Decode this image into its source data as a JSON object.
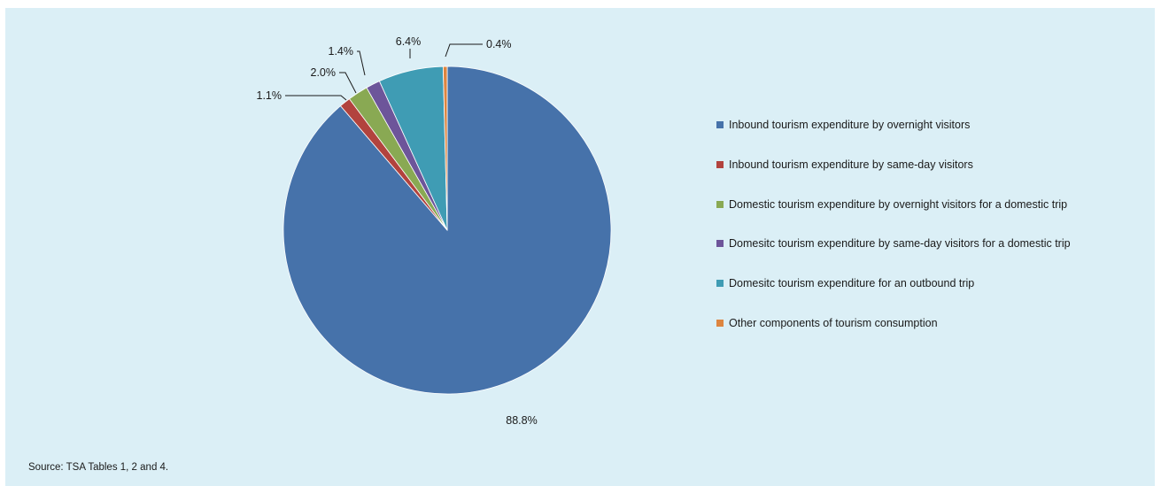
{
  "chart_data": {
    "type": "pie",
    "title": "",
    "slices": [
      {
        "label": "Inbound tourism expenditure by overnight visitors",
        "value": 88.8,
        "value_label": "88.8%",
        "color": "#4672aa"
      },
      {
        "label": "Inbound tourism expenditure by same-day visitors",
        "value": 1.1,
        "value_label": "1.1%",
        "color": "#b2433e"
      },
      {
        "label": "Domestic tourism expenditure by overnight visitors for a domestic trip",
        "value": 2.0,
        "value_label": "2.0%",
        "color": "#89a953"
      },
      {
        "label": "Domesitc tourism expenditure by same-day visitors for a domestic trip",
        "value": 1.4,
        "value_label": "1.4%",
        "color": "#6d559a"
      },
      {
        "label": "Domesitc tourism expenditure for an outbound trip",
        "value": 6.4,
        "value_label": "6.4%",
        "color": "#3f9cb4"
      },
      {
        "label": "Other components of tourism consumption",
        "value": 0.4,
        "value_label": "0.4%",
        "color": "#dd8540"
      }
    ],
    "legend_position": "right"
  },
  "source": "Source: TSA Tables 1, 2 and 4."
}
